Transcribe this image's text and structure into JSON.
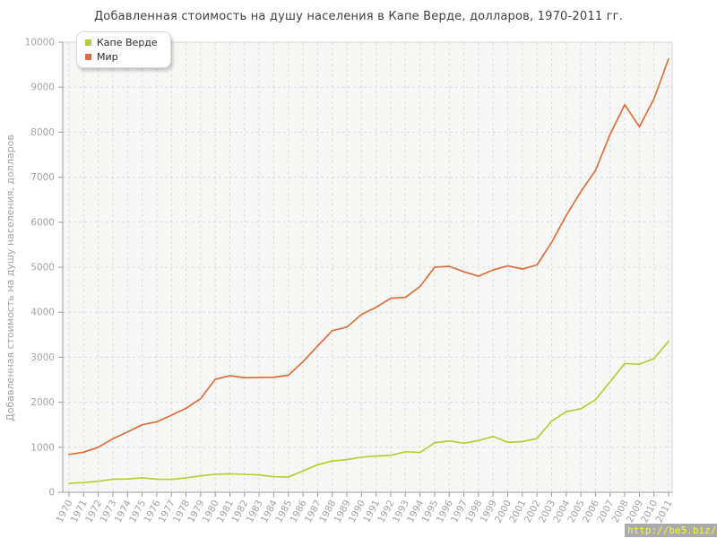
{
  "title": "Добавленная стоимость на душу населения в Капе Верде, долларов, 1970-2011 гг.",
  "watermark": "http://be5.biz/",
  "legend": {
    "position": "top-left",
    "items": [
      {
        "label": "Капе Верде"
      },
      {
        "label": "Мир"
      }
    ]
  },
  "colors": {
    "plot_background": "#f7f7f5",
    "plot_border": "#d6d6d6",
    "gridline": "#dcdcdc",
    "axis": "#9c9c9c",
    "tick_label": "#a3a3a3",
    "title_text": "#3f3f3f",
    "watermark_bg": "#ababab",
    "watermark_text": "#f8f832",
    "cape_verde_series": "#b1d135",
    "world_series": "#df6e3a"
  },
  "chart_data": {
    "type": "line",
    "title": "Добавленная стоимость на душу населения в Капе Верде, долларов, 1970-2011 гг.",
    "xlabel": "",
    "ylabel": "Добавленная стоимость на душу населения, долларов",
    "ylim": [
      0,
      10000
    ],
    "ytick_step": 1000,
    "grid": true,
    "legend_position": "top-left",
    "x": [
      1970,
      1971,
      1972,
      1973,
      1974,
      1975,
      1976,
      1977,
      1978,
      1979,
      1980,
      1981,
      1982,
      1983,
      1984,
      1985,
      1986,
      1987,
      1988,
      1989,
      1990,
      1991,
      1992,
      1993,
      1994,
      1995,
      1996,
      1997,
      1998,
      1999,
      2000,
      2001,
      2002,
      2003,
      2004,
      2005,
      2006,
      2007,
      2008,
      2009,
      2010,
      2011
    ],
    "series": [
      {
        "name": "Капе Верде",
        "color": "#b1d135",
        "values": [
          200,
          215,
          245,
          290,
          295,
          320,
          290,
          285,
          320,
          365,
          400,
          410,
          400,
          385,
          345,
          340,
          475,
          610,
          695,
          725,
          780,
          805,
          820,
          900,
          885,
          1100,
          1140,
          1090,
          1150,
          1240,
          1110,
          1125,
          1195,
          1580,
          1790,
          1855,
          2055,
          2455,
          2860,
          2845,
          2970,
          3355
        ]
      },
      {
        "name": "Мир",
        "color": "#df6e3a",
        "values": [
          840,
          890,
          1000,
          1190,
          1340,
          1500,
          1565,
          1710,
          1865,
          2080,
          2510,
          2590,
          2545,
          2550,
          2555,
          2600,
          2900,
          3250,
          3590,
          3670,
          3950,
          4110,
          4310,
          4330,
          4570,
          5000,
          5020,
          4900,
          4800,
          4940,
          5030,
          4960,
          5050,
          5550,
          6150,
          6680,
          7150,
          7950,
          8610,
          8120,
          8740,
          9630
        ]
      }
    ]
  }
}
